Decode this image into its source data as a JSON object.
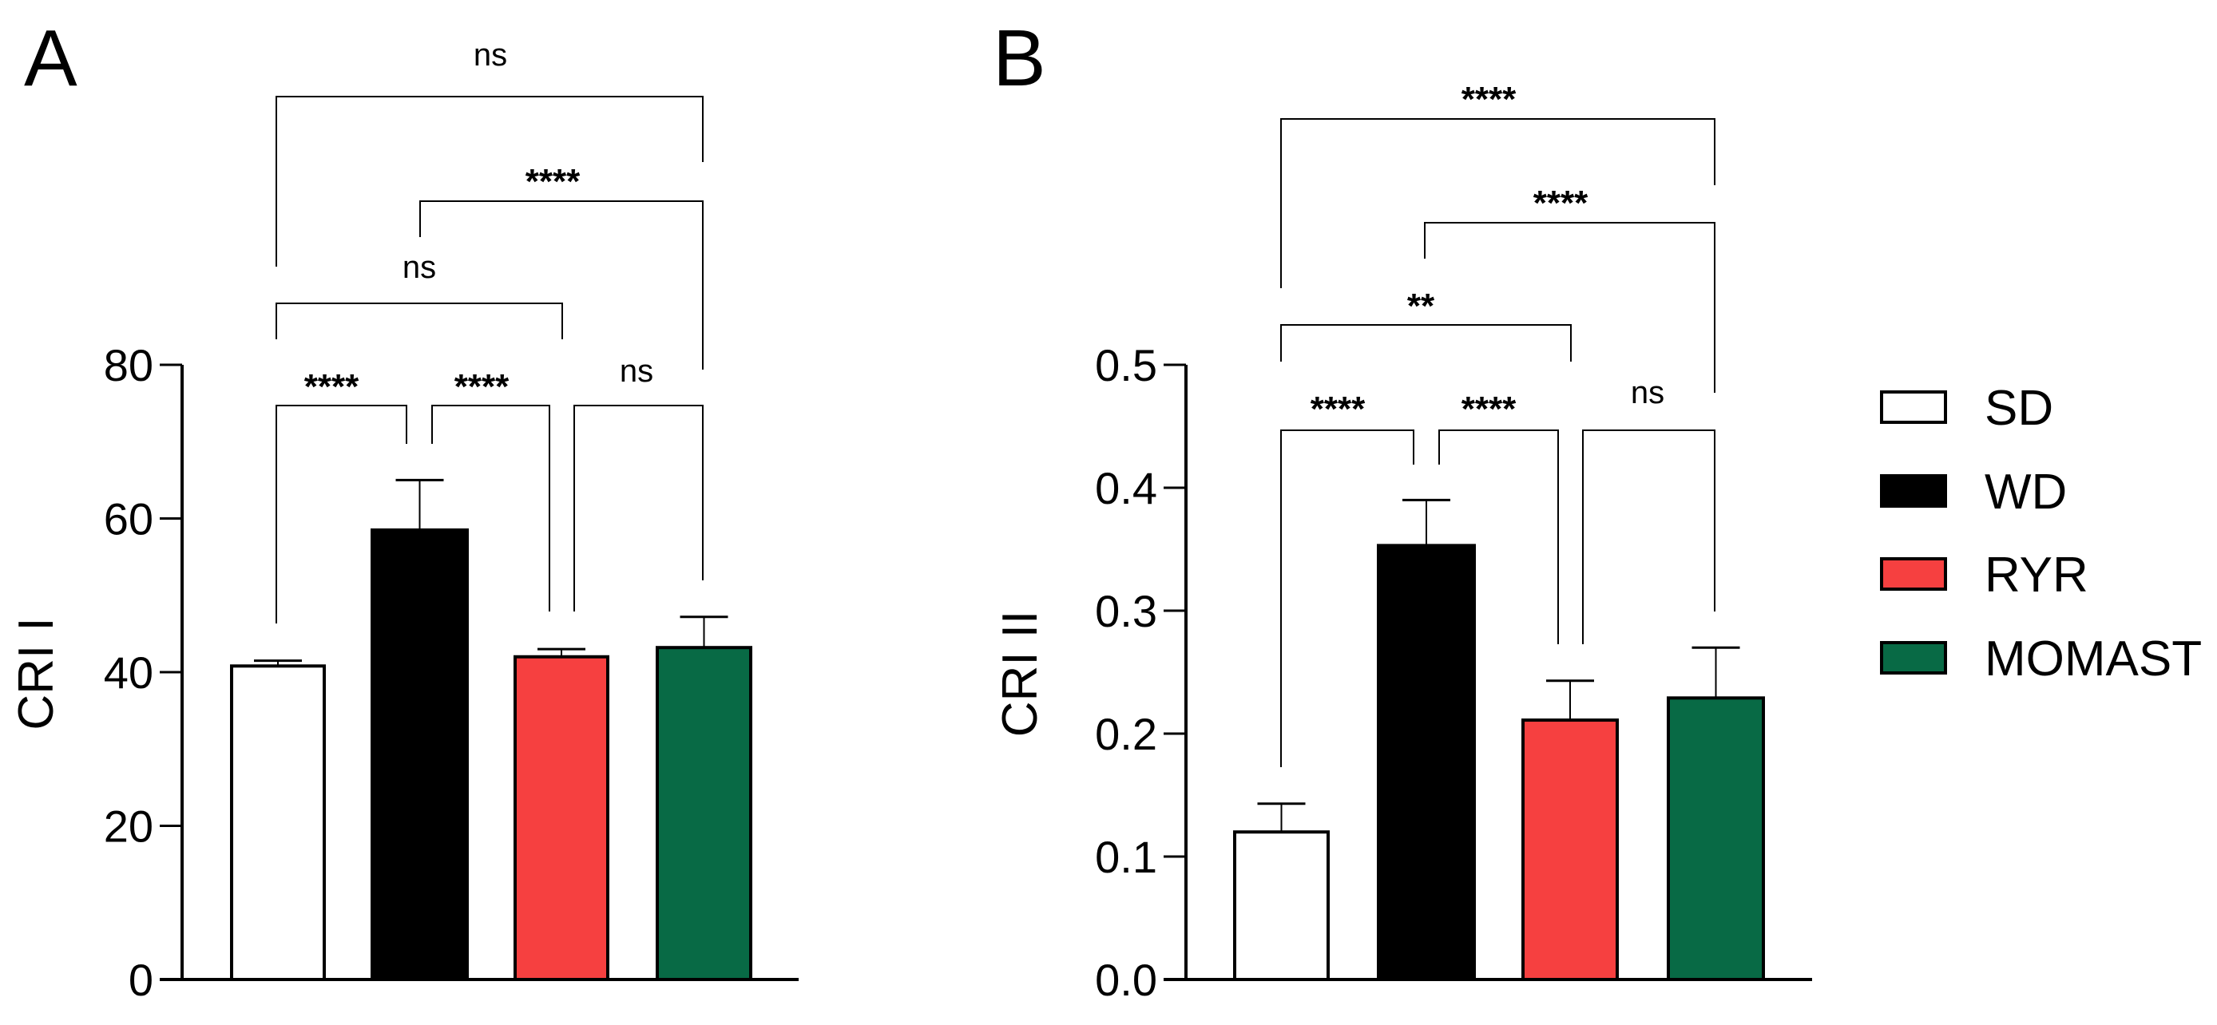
{
  "chart_data": [
    {
      "type": "bar",
      "panel_label": "A",
      "ylabel": "CRI I",
      "xlabel": "",
      "ylim": [
        0,
        80
      ],
      "yticks": [
        "0",
        "20",
        "40",
        "60",
        "80"
      ],
      "ytick_values": [
        0,
        20,
        40,
        60,
        80
      ],
      "categories": [
        "SD",
        "WD",
        "RYR",
        "MOMAST"
      ],
      "values": [
        40.8,
        58.5,
        42.0,
        43.2
      ],
      "error_upper": [
        41.5,
        65.0,
        43.0,
        47.2
      ],
      "comparisons": [
        {
          "groups": [
            "SD",
            "MOMAST"
          ],
          "label": "ns"
        },
        {
          "groups": [
            "WD",
            "MOMAST"
          ],
          "label": "****"
        },
        {
          "groups": [
            "SD",
            "RYR"
          ],
          "label": "ns"
        },
        {
          "groups": [
            "SD",
            "WD"
          ],
          "label": "****"
        },
        {
          "groups": [
            "WD",
            "RYR"
          ],
          "label": "****"
        },
        {
          "groups": [
            "RYR",
            "MOMAST"
          ],
          "label": "ns"
        }
      ],
      "grid": false
    },
    {
      "type": "bar",
      "panel_label": "B",
      "ylabel": "CRI II",
      "xlabel": "",
      "ylim": [
        0,
        0.5
      ],
      "yticks": [
        "0.0",
        "0.1",
        "0.2",
        "0.3",
        "0.4",
        "0.5"
      ],
      "ytick_values": [
        0,
        0.1,
        0.2,
        0.3,
        0.4,
        0.5
      ],
      "categories": [
        "SD",
        "WD",
        "RYR",
        "MOMAST"
      ],
      "values": [
        0.12,
        0.353,
        0.211,
        0.229
      ],
      "error_upper": [
        0.143,
        0.39,
        0.243,
        0.27
      ],
      "comparisons": [
        {
          "groups": [
            "SD",
            "MOMAST"
          ],
          "label": "****"
        },
        {
          "groups": [
            "WD",
            "MOMAST"
          ],
          "label": "****"
        },
        {
          "groups": [
            "SD",
            "RYR"
          ],
          "label": "**"
        },
        {
          "groups": [
            "SD",
            "WD"
          ],
          "label": "****"
        },
        {
          "groups": [
            "WD",
            "RYR"
          ],
          "label": "****"
        },
        {
          "groups": [
            "RYR",
            "MOMAST"
          ],
          "label": "ns"
        }
      ],
      "grid": false
    }
  ],
  "legend": {
    "placement": "right",
    "items": [
      {
        "label": "SD",
        "color": "#ffffff"
      },
      {
        "label": "WD",
        "color": "#000000"
      },
      {
        "label": "RYR",
        "color": "#f64040"
      },
      {
        "label": "MOMAST",
        "color": "#086a45"
      }
    ]
  }
}
